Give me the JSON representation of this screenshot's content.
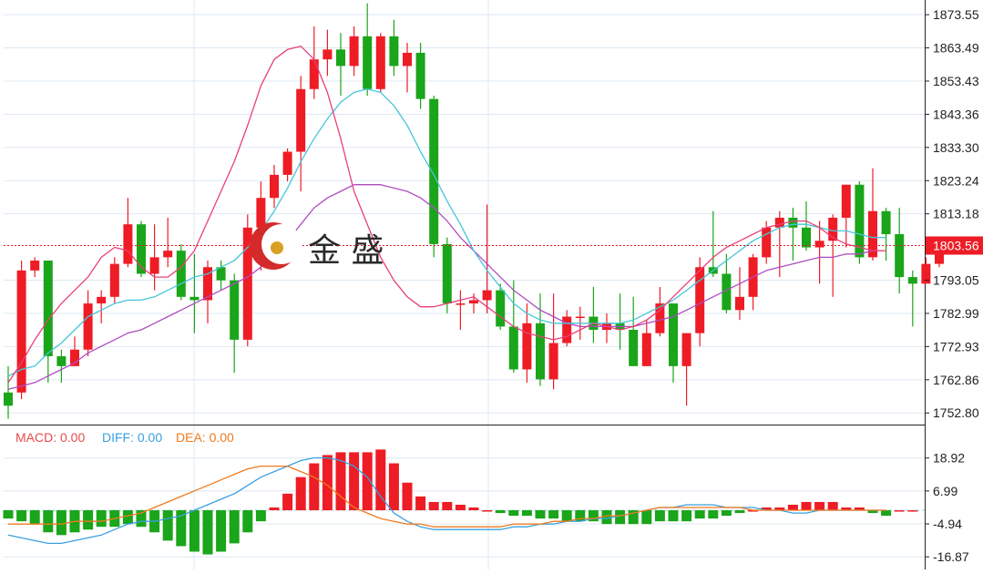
{
  "brand": {
    "name": "金 盛"
  },
  "colors": {
    "up": "#ee1c25",
    "down": "#1aa51a",
    "ma_fast": "#e8407a",
    "ma_mid": "#45c6d9",
    "ma_slow": "#b04cc2",
    "diff": "#3aa0e0",
    "dea": "#f07a1e",
    "price_line": "#ee1c25",
    "grid": "#dde8f2"
  },
  "chart_data": [
    {
      "type": "candlestick",
      "title": "",
      "y_ticks": [
        "1873.55",
        "1863.49",
        "1853.43",
        "1843.36",
        "1833.30",
        "1823.24",
        "1813.18",
        "1803.56",
        "1793.05",
        "1782.99",
        "1772.93",
        "1762.86",
        "1752.80"
      ],
      "ylim": [
        1749.0,
        1877.0
      ],
      "current_price": "1803.56",
      "candles": [
        [
          1759,
          1755,
          1767,
          1751
        ],
        [
          1759,
          1796,
          1799,
          1757
        ],
        [
          1796,
          1799,
          1800,
          1794
        ],
        [
          1799,
          1770,
          1799,
          1762
        ],
        [
          1770,
          1767,
          1772,
          1762
        ],
        [
          1767,
          1772,
          1776,
          1768
        ],
        [
          1772,
          1786,
          1790,
          1770
        ],
        [
          1786,
          1788,
          1790,
          1780
        ],
        [
          1788,
          1798,
          1800,
          1786
        ],
        [
          1798,
          1810,
          1818,
          1797
        ],
        [
          1810,
          1795,
          1811,
          1794
        ],
        [
          1795,
          1800,
          1810,
          1790
        ],
        [
          1800,
          1802,
          1812,
          1797
        ],
        [
          1802,
          1788,
          1804,
          1787
        ],
        [
          1788,
          1787,
          1801,
          1777
        ],
        [
          1787,
          1797,
          1799,
          1780
        ],
        [
          1797,
          1793,
          1799,
          1790
        ],
        [
          1793,
          1775,
          1795,
          1765
        ],
        [
          1775,
          1809,
          1813,
          1773
        ],
        [
          1809,
          1818,
          1823,
          1796
        ],
        [
          1818,
          1825,
          1828,
          1815
        ],
        [
          1825,
          1832,
          1833,
          1823
        ],
        [
          1832,
          1851,
          1855,
          1820
        ],
        [
          1851,
          1860,
          1870,
          1848
        ],
        [
          1860,
          1863,
          1869,
          1855
        ],
        [
          1863,
          1858,
          1868,
          1849
        ],
        [
          1858,
          1867,
          1870,
          1855
        ],
        [
          1867,
          1851,
          1877,
          1849
        ],
        [
          1851,
          1867,
          1868,
          1850
        ],
        [
          1867,
          1858,
          1872,
          1855
        ],
        [
          1858,
          1862,
          1865,
          1850
        ],
        [
          1862,
          1848,
          1865,
          1845
        ],
        [
          1848,
          1804,
          1849,
          1800
        ],
        [
          1804,
          1786,
          1806,
          1783
        ],
        [
          1786,
          1786,
          1790,
          1778
        ],
        [
          1786,
          1787,
          1789,
          1783
        ],
        [
          1787,
          1790,
          1816,
          1783
        ],
        [
          1790,
          1779,
          1792,
          1778
        ],
        [
          1779,
          1766,
          1793,
          1765
        ],
        [
          1766,
          1780,
          1786,
          1762
        ],
        [
          1780,
          1763,
          1789,
          1761
        ],
        [
          1763,
          1774,
          1789,
          1760
        ],
        [
          1774,
          1782,
          1784,
          1773
        ],
        [
          1782,
          1782,
          1785,
          1775
        ],
        [
          1782,
          1778,
          1791,
          1774
        ],
        [
          1778,
          1780,
          1783,
          1774
        ],
        [
          1780,
          1778,
          1789,
          1772
        ],
        [
          1778,
          1767,
          1788,
          1767
        ],
        [
          1767,
          1777,
          1781,
          1767
        ],
        [
          1777,
          1786,
          1791,
          1776
        ],
        [
          1786,
          1767,
          1783,
          1762
        ],
        [
          1767,
          1777,
          1777,
          1755
        ],
        [
          1777,
          1797,
          1800,
          1773
        ],
        [
          1797,
          1795,
          1814,
          1794
        ],
        [
          1795,
          1784,
          1801,
          1783
        ],
        [
          1784,
          1788,
          1797,
          1781
        ],
        [
          1788,
          1800,
          1801,
          1784
        ],
        [
          1800,
          1809,
          1811,
          1798
        ],
        [
          1809,
          1812,
          1814,
          1794
        ],
        [
          1812,
          1809,
          1815,
          1799
        ],
        [
          1809,
          1803,
          1817,
          1802
        ],
        [
          1803,
          1805,
          1811,
          1792
        ],
        [
          1805,
          1812,
          1813,
          1788
        ],
        [
          1812,
          1822,
          1822,
          1803
        ],
        [
          1822,
          1800,
          1823,
          1798
        ],
        [
          1800,
          1814,
          1827,
          1799
        ],
        [
          1814,
          1807,
          1815,
          1799
        ],
        [
          1807,
          1794,
          1815,
          1789
        ],
        [
          1794,
          1792,
          1796,
          1779
        ],
        [
          1792,
          1798,
          1800,
          1793
        ],
        [
          1798,
          1802,
          1804,
          1797
        ]
      ],
      "ma_fast": [
        1762,
        1768,
        1775,
        1781,
        1786,
        1790,
        1794,
        1800,
        1803,
        1802,
        1797,
        1794,
        1794,
        1797,
        1802,
        1811,
        1820,
        1829,
        1840,
        1852,
        1860,
        1863,
        1864,
        1860,
        1850,
        1836,
        1820,
        1810,
        1800,
        1793,
        1788,
        1785,
        1785,
        1786,
        1787,
        1788,
        1785,
        1782,
        1779,
        1777,
        1776,
        1775,
        1776,
        1778,
        1780,
        1779,
        1778,
        1779,
        1781,
        1784,
        1788,
        1792,
        1796,
        1800,
        1803,
        1805,
        1807,
        1809,
        1810,
        1811,
        1811,
        1809,
        1806,
        1804,
        1803,
        1802,
        1802
      ],
      "ma_mid": [
        1764,
        1766,
        1767,
        1771,
        1774,
        1778,
        1782,
        1784,
        1786,
        1787,
        1787,
        1788,
        1790,
        1792,
        1794,
        1795,
        1797,
        1799,
        1803,
        1808,
        1814,
        1821,
        1829,
        1836,
        1842,
        1847,
        1850,
        1851,
        1850,
        1846,
        1840,
        1832,
        1825,
        1817,
        1810,
        1802,
        1796,
        1791,
        1786,
        1783,
        1781,
        1780,
        1780,
        1780,
        1780,
        1780,
        1780,
        1781,
        1783,
        1785,
        1787,
        1790,
        1793,
        1796,
        1799,
        1802,
        1805,
        1807,
        1809,
        1810,
        1810,
        1809,
        1808,
        1808,
        1807,
        1806,
        1806
      ],
      "ma_slow": [
        1760,
        1761,
        1762,
        1764,
        1766,
        1768,
        1771,
        1773,
        1775,
        1777,
        1778,
        1780,
        1782,
        1784,
        1786,
        1788,
        1790,
        1792,
        1794,
        1797,
        1801,
        1805,
        1810,
        1815,
        1818,
        1820,
        1822,
        1822,
        1822,
        1821,
        1820,
        1818,
        1815,
        1811,
        1806,
        1802,
        1798,
        1794,
        1790,
        1787,
        1784,
        1782,
        1780,
        1779,
        1779,
        1779,
        1779,
        1779,
        1780,
        1781,
        1782,
        1784,
        1786,
        1788,
        1790,
        1792,
        1794,
        1796,
        1797,
        1798,
        1799,
        1800,
        1800,
        1801,
        1801,
        1802,
        1802
      ]
    },
    {
      "type": "macd",
      "legend": {
        "macd": "MACD: 0.00",
        "diff": "DIFF: 0.00",
        "dea": "DEA: 0.00"
      },
      "y_ticks": [
        "18.92",
        "6.99",
        "-4.94",
        "-16.87"
      ],
      "ylim": [
        -18.0,
        23.0
      ],
      "histogram": [
        -3,
        -4,
        -5,
        -8,
        -9,
        -8,
        -7,
        -6,
        -6,
        -5,
        -6,
        -8,
        -11,
        -13,
        -15,
        -16,
        -15,
        -12,
        -8,
        -4,
        1,
        6,
        12,
        17,
        20,
        21,
        21,
        21,
        22,
        17,
        10,
        5,
        3,
        3,
        2,
        1,
        0,
        -1,
        -2,
        -2,
        -3,
        -3,
        -4,
        -4,
        -4,
        -5,
        -5,
        -5,
        -5,
        -4,
        -4,
        -4,
        -3,
        -3,
        -2,
        -1,
        0,
        1,
        1,
        2,
        3,
        3,
        3,
        1,
        1,
        -1,
        -2,
        0,
        0
      ],
      "diff": [
        -9,
        -10,
        -11,
        -12,
        -12,
        -11,
        -10,
        -9,
        -7,
        -5,
        -4,
        -4,
        -3,
        -2,
        0,
        2,
        4,
        6,
        9,
        12,
        14,
        16,
        18,
        19,
        19,
        18,
        16,
        12,
        5,
        -1,
        -4,
        -6,
        -7,
        -7,
        -7,
        -7,
        -7,
        -7,
        -6,
        -6,
        -5,
        -5,
        -4,
        -4,
        -3,
        -3,
        -2,
        -1,
        0,
        1,
        1,
        2,
        2,
        2,
        1,
        1,
        1,
        0,
        0,
        -1,
        -1,
        0,
        0,
        0,
        0,
        0,
        0
      ],
      "dea": [
        -5,
        -5,
        -5,
        -5,
        -5,
        -4,
        -4,
        -4,
        -3,
        -2,
        -1,
        1,
        3,
        5,
        7,
        9,
        11,
        13,
        15,
        16,
        16,
        16,
        14,
        12,
        9,
        5,
        1,
        -1,
        -3,
        -4,
        -5,
        -5,
        -6,
        -6,
        -6,
        -6,
        -6,
        -6,
        -5,
        -5,
        -5,
        -4,
        -4,
        -3,
        -3,
        -2,
        -2,
        -1,
        0,
        1,
        1,
        1,
        1,
        1,
        1,
        1,
        0,
        0,
        0,
        0,
        0,
        0,
        0,
        0,
        0,
        0,
        0
      ]
    }
  ]
}
